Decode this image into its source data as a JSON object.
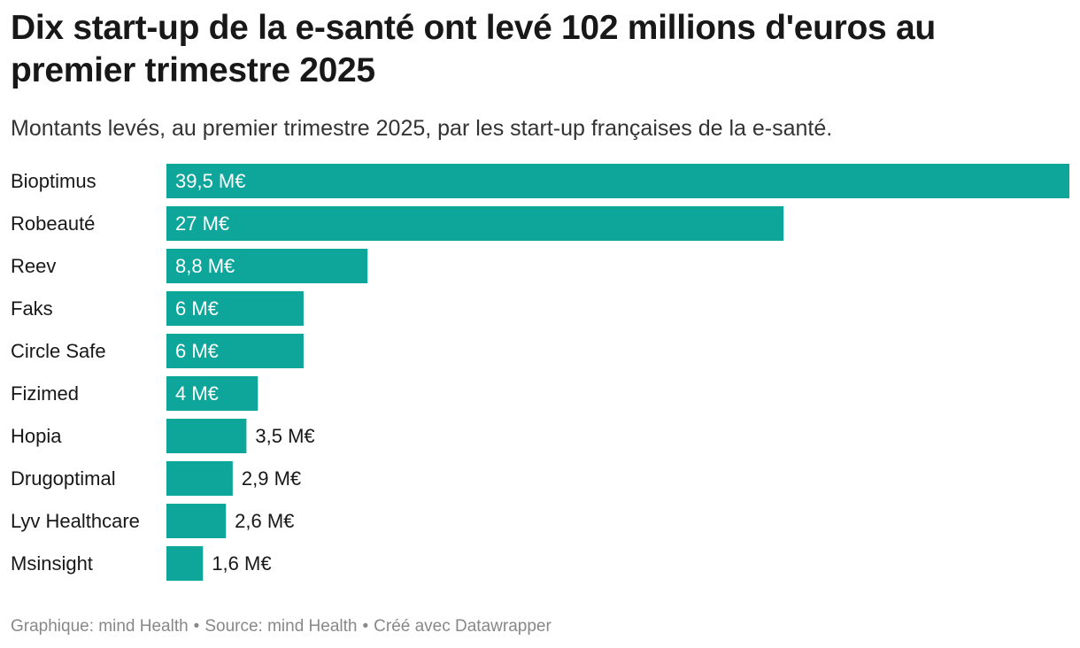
{
  "chart_data": {
    "type": "bar",
    "orientation": "horizontal",
    "title": "Dix start-up de la e-santé ont levé 102 millions d'euros au premier trimestre 2025",
    "subtitle": "Montants levés, au premier trimestre 2025, par les start-up françaises de la e-santé.",
    "categories": [
      "Bioptimus",
      "Robeauté",
      "Reev",
      "Faks",
      "Circle Safe",
      "Fizimed",
      "Hopia",
      "Drugoptimal",
      "Lyv Healthcare",
      "Msinsight"
    ],
    "values": [
      39.5,
      27,
      8.8,
      6,
      6,
      4,
      3.5,
      2.9,
      2.6,
      1.6
    ],
    "value_labels": [
      "39,5 M€",
      "27 M€",
      "8,8 M€",
      "6 M€",
      "6 M€",
      "4 M€",
      "3,5 M€",
      "2,9 M€",
      "2,6 M€",
      "1,6 M€"
    ],
    "xlim": [
      0,
      39.5
    ],
    "bar_color": "#0ea59b",
    "grid": false,
    "legend": "none"
  },
  "footer": {
    "graphique": "Graphique: mind Health",
    "source": "Source: mind Health",
    "credit": "Créé avec Datawrapper",
    "separator": "•"
  }
}
